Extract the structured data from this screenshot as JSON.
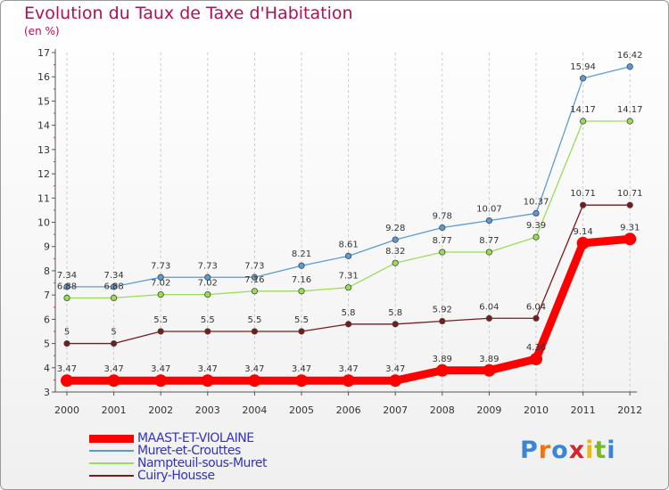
{
  "chart_data": {
    "type": "line",
    "title": "Evolution du Taux de Taxe d'Habitation",
    "subtitle": "(en %)",
    "xlabel": "",
    "ylabel": "",
    "x": [
      "2000",
      "2001",
      "2002",
      "2003",
      "2004",
      "2005",
      "2006",
      "2007",
      "2008",
      "2009",
      "2010",
      "2011",
      "2012"
    ],
    "ylim": [
      3,
      17
    ],
    "yticks": [
      3,
      4,
      5,
      6,
      7,
      8,
      9,
      10,
      11,
      12,
      13,
      14,
      15,
      16,
      17
    ],
    "grid": "vertical dashed",
    "legend_position": "bottom-left",
    "series": [
      {
        "name": "MAAST-ET-VIOLAINE",
        "color": "#ff0000",
        "values": [
          3.47,
          3.47,
          3.47,
          3.47,
          3.47,
          3.47,
          3.47,
          3.47,
          3.89,
          3.89,
          4.36,
          9.14,
          9.31
        ],
        "labels": [
          "3.47",
          "3.47",
          "3.47",
          "3.47",
          "3.47",
          "3.47",
          "3.47",
          "3.47",
          "3.89",
          "3.89",
          "4.36",
          "9.14",
          "9.31"
        ]
      },
      {
        "name": "Muret-et-Crouttes",
        "color": "#5b9bd5",
        "values": [
          7.34,
          7.34,
          7.73,
          7.73,
          7.73,
          8.21,
          8.61,
          9.28,
          9.78,
          10.07,
          10.37,
          15.94,
          16.42
        ],
        "labels": [
          "7.34",
          "7.34",
          "7.73",
          "7.73",
          "7.73",
          "8.21",
          "8.61",
          "9.28",
          "9.78",
          "10.07",
          "10.37",
          "15.94",
          "16.42"
        ]
      },
      {
        "name": "Nampteuil-sous-Muret",
        "color": "#99dd55",
        "values": [
          6.88,
          6.88,
          7.02,
          7.02,
          7.16,
          7.16,
          7.31,
          8.32,
          8.77,
          8.77,
          9.39,
          14.17,
          14.17
        ],
        "labels": [
          "6.88",
          "6.88",
          "7.02",
          "7.02",
          "7.16",
          "7.16",
          "7.31",
          "8.32",
          "8.77",
          "8.77",
          "9.39",
          "14.17",
          "14.17"
        ]
      },
      {
        "name": "Cuiry-Housse",
        "color": "#7a1a1a",
        "values": [
          5,
          5,
          5.5,
          5.5,
          5.5,
          5.5,
          5.8,
          5.8,
          5.92,
          6.04,
          6.04,
          10.71,
          10.71
        ],
        "labels": [
          "5",
          "5",
          "5.5",
          "5.5",
          "5.5",
          "5.5",
          "5.8",
          "5.8",
          "5.92",
          "6.04",
          "6.04",
          "10.71",
          "10.71"
        ]
      }
    ]
  },
  "logo": {
    "letters": [
      {
        "ch": "P",
        "color": "#3a86d4"
      },
      {
        "ch": "r",
        "color": "#e8741c"
      },
      {
        "ch": "o",
        "color": "#3a86d4"
      },
      {
        "ch": "x",
        "color": "#d7262b"
      },
      {
        "ch": "i",
        "color": "#e8b81c"
      },
      {
        "ch": "t",
        "color": "#79b928"
      },
      {
        "ch": "i",
        "color": "#3a86d4"
      }
    ]
  }
}
